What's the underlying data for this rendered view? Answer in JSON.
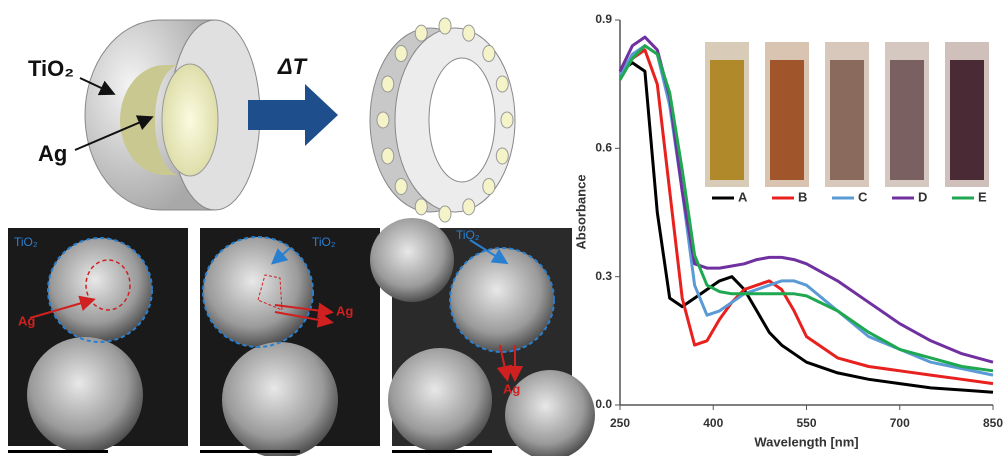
{
  "schematic": {
    "shell_label": "TiO₂",
    "core_label": "Ag",
    "arrow_label": "ΔT"
  },
  "micrographs": [
    {
      "shell_label": "TiO₂",
      "core_label": "Ag"
    },
    {
      "shell_label": "TiO₂",
      "core_label": "Ag"
    },
    {
      "shell_label": "TiO₂",
      "core_label": "Ag"
    }
  ],
  "chart_data": {
    "type": "line",
    "x_label": "Wavelength [nm]",
    "y_label": "Absorbance",
    "x": [
      250,
      270,
      290,
      310,
      330,
      350,
      370,
      390,
      410,
      430,
      450,
      470,
      490,
      510,
      530,
      550,
      600,
      650,
      700,
      750,
      800,
      850
    ],
    "series": [
      {
        "name": "A",
        "color": "#000000",
        "values": [
          0.78,
          0.8,
          0.78,
          0.45,
          0.25,
          0.23,
          0.25,
          0.27,
          0.29,
          0.3,
          0.27,
          0.22,
          0.17,
          0.14,
          0.12,
          0.1,
          0.075,
          0.06,
          0.05,
          0.04,
          0.035,
          0.03
        ]
      },
      {
        "name": "B",
        "color": "#e8201e",
        "values": [
          0.77,
          0.81,
          0.83,
          0.75,
          0.5,
          0.25,
          0.14,
          0.15,
          0.2,
          0.24,
          0.27,
          0.28,
          0.29,
          0.27,
          0.22,
          0.16,
          0.11,
          0.09,
          0.08,
          0.07,
          0.06,
          0.05
        ]
      },
      {
        "name": "C",
        "color": "#5b9bd5",
        "values": [
          0.77,
          0.82,
          0.84,
          0.82,
          0.7,
          0.5,
          0.28,
          0.21,
          0.22,
          0.24,
          0.26,
          0.27,
          0.28,
          0.29,
          0.29,
          0.28,
          0.22,
          0.16,
          0.13,
          0.1,
          0.085,
          0.07
        ]
      },
      {
        "name": "D",
        "color": "#7030a0",
        "values": [
          0.78,
          0.84,
          0.86,
          0.83,
          0.72,
          0.5,
          0.33,
          0.32,
          0.32,
          0.325,
          0.33,
          0.34,
          0.345,
          0.345,
          0.34,
          0.33,
          0.29,
          0.24,
          0.19,
          0.15,
          0.12,
          0.1
        ]
      },
      {
        "name": "E",
        "color": "#1fa850",
        "values": [
          0.76,
          0.81,
          0.84,
          0.82,
          0.73,
          0.55,
          0.35,
          0.28,
          0.265,
          0.26,
          0.26,
          0.26,
          0.26,
          0.26,
          0.26,
          0.255,
          0.22,
          0.17,
          0.13,
          0.11,
          0.09,
          0.08
        ]
      }
    ],
    "xlim": [
      250,
      850
    ],
    "xticks": [
      250,
      400,
      550,
      700,
      850
    ],
    "ylim": [
      0,
      0.9
    ],
    "yticks": [
      {
        "value": 0,
        "label": "0.0"
      },
      0.3,
      0.6,
      0.9
    ]
  }
}
